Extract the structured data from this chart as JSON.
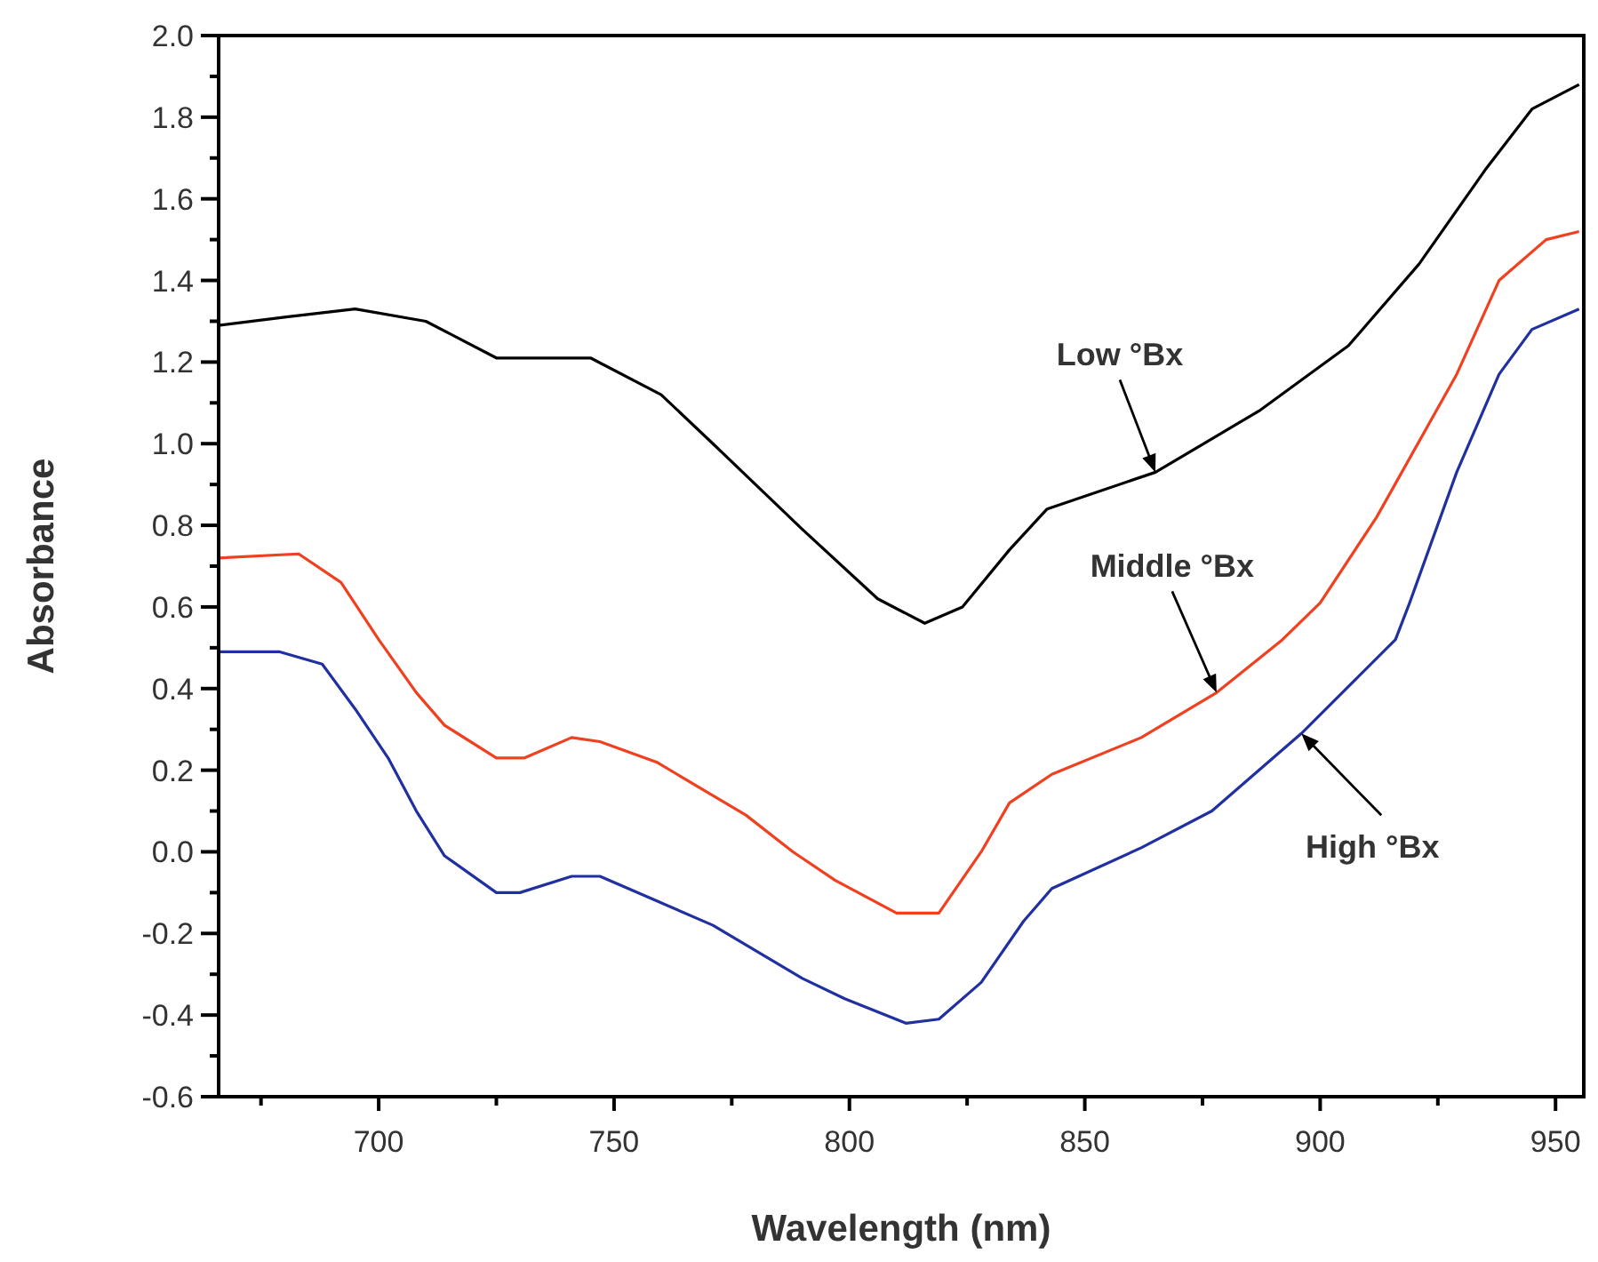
{
  "chart_data": {
    "type": "line",
    "xlabel": "Wavelength (nm)",
    "ylabel": "Absorbance",
    "xlim": [
      666,
      956
    ],
    "ylim": [
      -0.6,
      2.0
    ],
    "xticks": [
      {
        "value": 675,
        "label": null
      },
      700,
      {
        "value": 725,
        "label": null
      },
      750,
      {
        "value": 775,
        "label": null
      },
      800,
      {
        "value": 825,
        "label": null
      },
      850,
      {
        "value": 875,
        "label": null
      },
      900,
      {
        "value": 925,
        "label": null
      },
      950
    ],
    "yticks": [
      {
        "value": -0.6,
        "label": "-0.6"
      },
      {
        "value": -0.5,
        "label": null
      },
      {
        "value": -0.4,
        "label": "-0.4"
      },
      {
        "value": -0.3,
        "label": null
      },
      {
        "value": -0.2,
        "label": "-0.2"
      },
      {
        "value": -0.1,
        "label": null
      },
      {
        "value": 0,
        "label": "0.0"
      },
      {
        "value": 0.1,
        "label": null
      },
      {
        "value": 0.2,
        "label": "0.2"
      },
      {
        "value": 0.3,
        "label": null
      },
      {
        "value": 0.4,
        "label": "0.4"
      },
      {
        "value": 0.5,
        "label": null
      },
      {
        "value": 0.6,
        "label": "0.6"
      },
      {
        "value": 0.7,
        "label": null
      },
      {
        "value": 0.8,
        "label": "0.8"
      },
      {
        "value": 0.9,
        "label": null
      },
      {
        "value": 1,
        "label": "1.0"
      },
      {
        "value": 1.1,
        "label": null
      },
      {
        "value": 1.2,
        "label": "1.2"
      },
      {
        "value": 1.3,
        "label": null
      },
      {
        "value": 1.4,
        "label": "1.4"
      },
      {
        "value": 1.5,
        "label": null
      },
      {
        "value": 1.6,
        "label": "1.6"
      },
      {
        "value": 1.7,
        "label": null
      },
      {
        "value": 1.8,
        "label": "1.8"
      },
      {
        "value": 1.9,
        "label": null
      },
      {
        "value": 2,
        "label": "2.0"
      }
    ],
    "grid": false,
    "marker": "none",
    "line_style": "solid",
    "series": [
      {
        "name": "Low °Bx",
        "color": "#000000",
        "x": [
          666,
          680,
          695,
          710,
          725,
          745,
          760,
          771,
          790,
          806,
          816,
          824,
          834,
          842,
          865,
          887,
          906,
          921,
          935,
          945,
          955
        ],
        "values": [
          1.29,
          1.31,
          1.33,
          1.3,
          1.21,
          1.21,
          1.12,
          1.0,
          0.79,
          0.62,
          0.56,
          0.6,
          0.74,
          0.84,
          0.93,
          1.08,
          1.24,
          1.44,
          1.67,
          1.82,
          1.88
        ]
      },
      {
        "name": "Middle °Bx",
        "color": "#f04020",
        "x": [
          666,
          683,
          692,
          700,
          708,
          714,
          725,
          731,
          741,
          747,
          759,
          778,
          788,
          797,
          810,
          819,
          828,
          834,
          843,
          862,
          878,
          892,
          900,
          912,
          929,
          938,
          948,
          955
        ],
        "values": [
          0.72,
          0.73,
          0.66,
          0.52,
          0.39,
          0.31,
          0.23,
          0.23,
          0.28,
          0.27,
          0.22,
          0.09,
          0.0,
          -0.07,
          -0.15,
          -0.15,
          0.0,
          0.12,
          0.19,
          0.28,
          0.39,
          0.52,
          0.61,
          0.82,
          1.17,
          1.4,
          1.5,
          1.52
        ]
      },
      {
        "name": "High °Bx",
        "color": "#2030a0",
        "x": [
          666,
          679,
          688,
          695,
          702,
          708,
          714,
          725,
          730,
          741,
          747,
          759,
          771,
          790,
          799,
          812,
          819,
          828,
          837,
          843,
          862,
          877,
          896,
          916,
          919,
          929,
          938,
          945,
          955
        ],
        "values": [
          0.49,
          0.49,
          0.46,
          0.35,
          0.23,
          0.1,
          -0.01,
          -0.1,
          -0.1,
          -0.06,
          -0.06,
          -0.12,
          -0.18,
          -0.31,
          -0.36,
          -0.42,
          -0.41,
          -0.32,
          -0.17,
          -0.09,
          0.01,
          0.1,
          0.29,
          0.52,
          0.61,
          0.93,
          1.17,
          1.28,
          1.33
        ]
      }
    ],
    "legend": false
  }
}
